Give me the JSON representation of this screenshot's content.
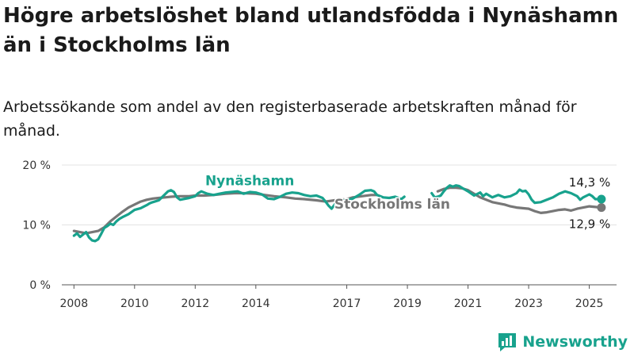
{
  "title": "Högre arbetslöshet bland utlandsfödda i Nynäshamn än i Stockholms län",
  "subtitle": "Arbetssökande som andel av den registerbaserade arbetskraften månad för månad.",
  "logo": {
    "text": "Newsworthy",
    "color": "#18a28d"
  },
  "chart_data": {
    "type": "line",
    "x_unit": "year",
    "y_unit": "percent",
    "xlim": [
      2007.6,
      2025.9
    ],
    "ylim": [
      0,
      20
    ],
    "y_ticks": [
      {
        "value": 0,
        "label": "0 %"
      },
      {
        "value": 10,
        "label": "10 %"
      },
      {
        "value": 20,
        "label": "20 %"
      }
    ],
    "x_ticks": [
      {
        "value": 2008,
        "label": "2008"
      },
      {
        "value": 2010,
        "label": "2010"
      },
      {
        "value": 2012,
        "label": "2012"
      },
      {
        "value": 2014,
        "label": "2014"
      },
      {
        "value": 2017,
        "label": "2017"
      },
      {
        "value": 2019,
        "label": "2019"
      },
      {
        "value": 2021,
        "label": "2021"
      },
      {
        "value": 2023,
        "label": "2023"
      },
      {
        "value": 2025,
        "label": "2025"
      }
    ],
    "grid": true,
    "series": [
      {
        "name": "Stockholms län",
        "color": "#777777",
        "end_label": "12,9 %",
        "points": [
          [
            2008.0,
            9.0
          ],
          [
            2008.2,
            8.8
          ],
          [
            2008.4,
            8.6
          ],
          [
            2008.6,
            8.8
          ],
          [
            2008.8,
            9.0
          ],
          [
            2009.0,
            9.6
          ],
          [
            2009.2,
            10.6
          ],
          [
            2009.4,
            11.4
          ],
          [
            2009.6,
            12.2
          ],
          [
            2009.8,
            12.9
          ],
          [
            2010.0,
            13.4
          ],
          [
            2010.2,
            13.9
          ],
          [
            2010.4,
            14.2
          ],
          [
            2010.6,
            14.4
          ],
          [
            2010.8,
            14.5
          ],
          [
            2011.0,
            14.6
          ],
          [
            2011.2,
            14.7
          ],
          [
            2011.5,
            14.8
          ],
          [
            2011.8,
            14.8
          ],
          [
            2012.0,
            14.9
          ],
          [
            2012.3,
            14.9
          ],
          [
            2012.6,
            15.0
          ],
          [
            2013.0,
            15.2
          ],
          [
            2013.3,
            15.3
          ],
          [
            2013.6,
            15.3
          ],
          [
            2014.0,
            15.2
          ],
          [
            2014.3,
            15.0
          ],
          [
            2014.6,
            14.8
          ],
          [
            2015.0,
            14.6
          ],
          [
            2015.3,
            14.4
          ],
          [
            2015.6,
            14.3
          ],
          [
            2016.0,
            14.1
          ],
          [
            2016.3,
            13.9
          ],
          [
            2016.6,
            14.1
          ],
          [
            2017.0,
            14.3
          ],
          [
            2017.2,
            14.6
          ],
          [
            2017.5,
            14.8
          ],
          [
            2017.8,
            15.0
          ],
          [
            2018.0,
            15.0
          ]
        ],
        "points_2": [
          [
            2020.0,
            15.6
          ],
          [
            2020.2,
            16.0
          ],
          [
            2020.4,
            16.2
          ],
          [
            2020.6,
            16.2
          ],
          [
            2020.8,
            16.1
          ],
          [
            2021.0,
            15.8
          ],
          [
            2021.2,
            15.2
          ],
          [
            2021.4,
            14.6
          ],
          [
            2021.6,
            14.2
          ],
          [
            2021.8,
            13.8
          ],
          [
            2022.0,
            13.6
          ],
          [
            2022.2,
            13.4
          ],
          [
            2022.4,
            13.1
          ],
          [
            2022.6,
            12.9
          ],
          [
            2022.8,
            12.8
          ],
          [
            2023.0,
            12.7
          ],
          [
            2023.2,
            12.3
          ],
          [
            2023.4,
            12.0
          ],
          [
            2023.6,
            12.1
          ],
          [
            2023.8,
            12.3
          ],
          [
            2024.0,
            12.5
          ],
          [
            2024.2,
            12.6
          ],
          [
            2024.4,
            12.4
          ],
          [
            2024.6,
            12.7
          ],
          [
            2024.8,
            12.9
          ],
          [
            2025.0,
            13.1
          ],
          [
            2025.2,
            13.0
          ],
          [
            2025.4,
            12.9
          ]
        ]
      },
      {
        "name": "Nynäshamn",
        "color": "#18a28d",
        "end_label": "14,3 %",
        "points": [
          [
            2008.0,
            8.2
          ],
          [
            2008.1,
            8.6
          ],
          [
            2008.2,
            8.0
          ],
          [
            2008.3,
            8.4
          ],
          [
            2008.4,
            8.8
          ],
          [
            2008.5,
            7.9
          ],
          [
            2008.6,
            7.4
          ],
          [
            2008.7,
            7.3
          ],
          [
            2008.8,
            7.6
          ],
          [
            2008.9,
            8.5
          ],
          [
            2009.0,
            9.5
          ],
          [
            2009.1,
            9.8
          ],
          [
            2009.2,
            10.2
          ],
          [
            2009.3,
            10.0
          ],
          [
            2009.4,
            10.6
          ],
          [
            2009.5,
            11.0
          ],
          [
            2009.6,
            11.3
          ],
          [
            2009.8,
            11.8
          ],
          [
            2010.0,
            12.5
          ],
          [
            2010.2,
            12.8
          ],
          [
            2010.4,
            13.3
          ],
          [
            2010.5,
            13.6
          ],
          [
            2010.6,
            13.8
          ],
          [
            2010.8,
            14.1
          ],
          [
            2010.9,
            14.6
          ],
          [
            2011.0,
            15.1
          ],
          [
            2011.1,
            15.6
          ],
          [
            2011.2,
            15.8
          ],
          [
            2011.3,
            15.5
          ],
          [
            2011.4,
            14.6
          ],
          [
            2011.5,
            14.2
          ],
          [
            2011.6,
            14.3
          ],
          [
            2011.8,
            14.5
          ],
          [
            2012.0,
            14.8
          ],
          [
            2012.1,
            15.3
          ],
          [
            2012.2,
            15.6
          ],
          [
            2012.4,
            15.2
          ],
          [
            2012.6,
            15.0
          ],
          [
            2012.8,
            15.2
          ],
          [
            2013.0,
            15.4
          ],
          [
            2013.2,
            15.5
          ],
          [
            2013.4,
            15.6
          ],
          [
            2013.6,
            15.2
          ],
          [
            2013.8,
            15.5
          ],
          [
            2014.0,
            15.4
          ],
          [
            2014.2,
            15.1
          ],
          [
            2014.4,
            14.4
          ],
          [
            2014.6,
            14.3
          ],
          [
            2014.8,
            14.7
          ],
          [
            2015.0,
            15.2
          ],
          [
            2015.2,
            15.4
          ],
          [
            2015.4,
            15.3
          ],
          [
            2015.6,
            15.0
          ],
          [
            2015.8,
            14.8
          ],
          [
            2016.0,
            14.9
          ],
          [
            2016.2,
            14.5
          ],
          [
            2016.3,
            13.9
          ],
          [
            2016.4,
            13.2
          ],
          [
            2016.5,
            12.7
          ],
          [
            2016.6,
            13.4
          ],
          [
            2016.8,
            14.1
          ],
          [
            2017.0,
            14.1
          ],
          [
            2017.2,
            14.4
          ],
          [
            2017.4,
            15.0
          ],
          [
            2017.6,
            15.7
          ],
          [
            2017.8,
            15.8
          ],
          [
            2017.9,
            15.6
          ],
          [
            2018.0,
            15.0
          ],
          [
            2018.2,
            14.6
          ],
          [
            2018.4,
            14.5
          ],
          [
            2018.6,
            14.7
          ],
          [
            2018.8,
            14.3
          ],
          [
            2018.9,
            14.7
          ]
        ],
        "points_2": [
          [
            2019.8,
            15.3
          ],
          [
            2019.9,
            14.6
          ],
          [
            2020.0,
            14.7
          ],
          [
            2020.1,
            14.9
          ],
          [
            2020.2,
            15.6
          ],
          [
            2020.3,
            16.2
          ],
          [
            2020.4,
            16.6
          ],
          [
            2020.5,
            16.4
          ],
          [
            2020.6,
            16.6
          ],
          [
            2020.7,
            16.5
          ],
          [
            2020.8,
            16.2
          ],
          [
            2021.0,
            15.6
          ],
          [
            2021.2,
            14.9
          ],
          [
            2021.4,
            15.4
          ],
          [
            2021.5,
            14.8
          ],
          [
            2021.6,
            15.2
          ],
          [
            2021.8,
            14.6
          ],
          [
            2022.0,
            15.0
          ],
          [
            2022.2,
            14.6
          ],
          [
            2022.4,
            14.8
          ],
          [
            2022.6,
            15.3
          ],
          [
            2022.7,
            15.9
          ],
          [
            2022.8,
            15.6
          ],
          [
            2022.9,
            15.7
          ],
          [
            2023.0,
            15.1
          ],
          [
            2023.1,
            14.2
          ],
          [
            2023.2,
            13.7
          ],
          [
            2023.4,
            13.8
          ],
          [
            2023.6,
            14.2
          ],
          [
            2023.8,
            14.6
          ],
          [
            2024.0,
            15.2
          ],
          [
            2024.2,
            15.6
          ],
          [
            2024.4,
            15.3
          ],
          [
            2024.6,
            14.8
          ],
          [
            2024.7,
            14.2
          ],
          [
            2024.8,
            14.6
          ],
          [
            2025.0,
            15.1
          ],
          [
            2025.1,
            14.8
          ],
          [
            2025.2,
            14.3
          ],
          [
            2025.4,
            14.3
          ]
        ]
      }
    ],
    "series_labels": [
      {
        "text": "Nynäshamn",
        "color": "#18a28d",
        "x": 2013.8,
        "y": 16.6
      },
      {
        "text": "Stockholms län",
        "color": "#777777",
        "x": 2018.5,
        "y": 12.7
      }
    ]
  }
}
